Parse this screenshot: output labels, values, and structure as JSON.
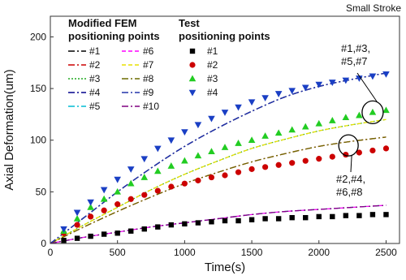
{
  "panel_label": "Small Stroke",
  "chart_data": {
    "type": "line",
    "xlabel": "Time(s)",
    "ylabel": "Axial Deformation(um)",
    "xlim": [
      0,
      2600
    ],
    "ylim": [
      0,
      220
    ],
    "x_ticks": [
      0,
      500,
      1000,
      1500,
      2000,
      2500
    ],
    "y_ticks": [
      0,
      50,
      100,
      150,
      200
    ],
    "grid": false,
    "legend_placement": "top-left",
    "legend_groups": [
      {
        "title": "Modified FEM\npositioning points",
        "kind": "line"
      },
      {
        "title": "Test\npositioning points",
        "kind": "marker"
      }
    ],
    "fem_series": [
      {
        "name": "#1",
        "color": "#000000",
        "dash": "dashdot",
        "values_at": [
          [
            0,
            0
          ],
          [
            250,
            25
          ],
          [
            500,
            50
          ],
          [
            750,
            73
          ],
          [
            1000,
            94
          ],
          [
            1250,
            112
          ],
          [
            1500,
            128
          ],
          [
            1750,
            142
          ],
          [
            2000,
            152
          ],
          [
            2250,
            159
          ],
          [
            2500,
            165
          ]
        ]
      },
      {
        "name": "#2",
        "color": "#cc0000",
        "dash": "dashdot",
        "values_at": [
          [
            0,
            0
          ],
          [
            250,
            16
          ],
          [
            500,
            31
          ],
          [
            750,
            45
          ],
          [
            1000,
            58
          ],
          [
            1250,
            69
          ],
          [
            1500,
            79
          ],
          [
            1750,
            87
          ],
          [
            2000,
            94
          ],
          [
            2250,
            99
          ],
          [
            2500,
            103
          ]
        ]
      },
      {
        "name": "#3",
        "color": "#22aa22",
        "dash": "dotted",
        "values_at": [
          [
            0,
            0
          ],
          [
            250,
            18
          ],
          [
            500,
            35
          ],
          [
            750,
            52
          ],
          [
            1000,
            67
          ],
          [
            1250,
            80
          ],
          [
            1500,
            92
          ],
          [
            1750,
            101
          ],
          [
            2000,
            109
          ],
          [
            2250,
            115
          ],
          [
            2500,
            120
          ]
        ]
      },
      {
        "name": "#4",
        "color": "#00008b",
        "dash": "dashdot",
        "values_at": [
          [
            0,
            0
          ],
          [
            250,
            25
          ],
          [
            500,
            50
          ],
          [
            750,
            73
          ],
          [
            1000,
            94
          ],
          [
            1250,
            112
          ],
          [
            1500,
            128
          ],
          [
            1750,
            142
          ],
          [
            2000,
            152
          ],
          [
            2250,
            159
          ],
          [
            2500,
            165
          ]
        ]
      },
      {
        "name": "#5",
        "color": "#00bcd4",
        "dash": "dashdot",
        "values_at": [
          [
            0,
            0
          ],
          [
            250,
            6
          ],
          [
            500,
            11
          ],
          [
            750,
            16
          ],
          [
            1000,
            20
          ],
          [
            1250,
            24
          ],
          [
            1500,
            28
          ],
          [
            1750,
            31
          ],
          [
            2000,
            33
          ],
          [
            2250,
            35
          ],
          [
            2500,
            37
          ]
        ]
      },
      {
        "name": "#6",
        "color": "#ff00ff",
        "dash": "dashed",
        "values_at": [
          [
            0,
            0
          ],
          [
            250,
            6
          ],
          [
            500,
            11
          ],
          [
            750,
            16
          ],
          [
            1000,
            20
          ],
          [
            1250,
            24
          ],
          [
            1500,
            28
          ],
          [
            1750,
            31
          ],
          [
            2000,
            33
          ],
          [
            2250,
            35
          ],
          [
            2500,
            37
          ]
        ]
      },
      {
        "name": "#7",
        "color": "#e8e000",
        "dash": "dashed",
        "values_at": [
          [
            0,
            0
          ],
          [
            250,
            18
          ],
          [
            500,
            35
          ],
          [
            750,
            52
          ],
          [
            1000,
            67
          ],
          [
            1250,
            80
          ],
          [
            1500,
            92
          ],
          [
            1750,
            101
          ],
          [
            2000,
            109
          ],
          [
            2250,
            115
          ],
          [
            2500,
            120
          ]
        ]
      },
      {
        "name": "#8",
        "color": "#6b6b00",
        "dash": "dashdot",
        "values_at": [
          [
            0,
            0
          ],
          [
            250,
            16
          ],
          [
            500,
            31
          ],
          [
            750,
            45
          ],
          [
            1000,
            58
          ],
          [
            1250,
            69
          ],
          [
            1500,
            79
          ],
          [
            1750,
            87
          ],
          [
            2000,
            94
          ],
          [
            2250,
            99
          ],
          [
            2500,
            103
          ]
        ]
      },
      {
        "name": "#9",
        "color": "#2233aa",
        "dash": "dashdot",
        "values_at": [
          [
            0,
            0
          ],
          [
            250,
            25
          ],
          [
            500,
            50
          ],
          [
            750,
            73
          ],
          [
            1000,
            94
          ],
          [
            1250,
            112
          ],
          [
            1500,
            128
          ],
          [
            1750,
            142
          ],
          [
            2000,
            152
          ],
          [
            2250,
            159
          ],
          [
            2500,
            165
          ]
        ]
      },
      {
        "name": "#10",
        "color": "#800080",
        "dash": "dashdot",
        "values_at": [
          [
            0,
            0
          ],
          [
            250,
            6
          ],
          [
            500,
            11
          ],
          [
            750,
            16
          ],
          [
            1000,
            20
          ],
          [
            1250,
            24
          ],
          [
            1500,
            28
          ],
          [
            1750,
            31
          ],
          [
            2000,
            33
          ],
          [
            2250,
            35
          ],
          [
            2500,
            37
          ]
        ]
      }
    ],
    "test_series": [
      {
        "name": "#1",
        "marker": "square",
        "color": "#000000",
        "x": [
          100,
          200,
          300,
          400,
          500,
          600,
          700,
          800,
          900,
          1000,
          1100,
          1200,
          1300,
          1400,
          1500,
          1600,
          1700,
          1800,
          1900,
          2000,
          2100,
          2200,
          2300,
          2400,
          2500
        ],
        "y": [
          3,
          5,
          7,
          9,
          10,
          12,
          14,
          16,
          18,
          19,
          20,
          21,
          22,
          22,
          23,
          24,
          24,
          25,
          25,
          26,
          26,
          27,
          27,
          28,
          28
        ]
      },
      {
        "name": "#2",
        "marker": "circle",
        "color": "#cc0000",
        "x": [
          100,
          200,
          300,
          400,
          500,
          600,
          700,
          800,
          900,
          1000,
          1100,
          1200,
          1300,
          1400,
          1500,
          1600,
          1700,
          1800,
          1900,
          2000,
          2100,
          2200,
          2300,
          2400,
          2500
        ],
        "y": [
          10,
          18,
          26,
          32,
          38,
          43,
          47,
          51,
          55,
          58,
          61,
          64,
          66,
          69,
          72,
          74,
          76,
          78,
          80,
          82,
          84,
          86,
          88,
          90,
          92
        ]
      },
      {
        "name": "#3",
        "marker": "triangle-up",
        "color": "#22cc22",
        "x": [
          100,
          200,
          300,
          400,
          500,
          600,
          700,
          800,
          900,
          1000,
          1100,
          1200,
          1300,
          1400,
          1500,
          1600,
          1700,
          1800,
          1900,
          2000,
          2100,
          2200,
          2300,
          2400,
          2500
        ],
        "y": [
          12,
          24,
          35,
          43,
          50,
          58,
          64,
          70,
          75,
          80,
          85,
          89,
          93,
          97,
          100,
          104,
          107,
          110,
          113,
          116,
          119,
          122,
          124,
          127,
          129
        ]
      },
      {
        "name": "#4",
        "marker": "triangle-down",
        "color": "#1a3fc4",
        "x": [
          100,
          200,
          300,
          400,
          500,
          600,
          700,
          800,
          900,
          1000,
          1100,
          1200,
          1300,
          1400,
          1500,
          1600,
          1700,
          1800,
          1900,
          2000,
          2100,
          2200,
          2300,
          2400,
          2500
        ],
        "y": [
          14,
          30,
          40,
          52,
          62,
          72,
          82,
          92,
          100,
          108,
          115,
          121,
          127,
          132,
          137,
          141,
          145,
          148,
          151,
          154,
          156,
          158,
          160,
          162,
          164
        ]
      }
    ],
    "annotations": [
      {
        "text": "#1,#3,\n#5,#7",
        "target": [
          2400,
          127
        ]
      },
      {
        "text": "#2,#4,\n#6,#8",
        "target": [
          2220,
          95
        ]
      }
    ]
  }
}
